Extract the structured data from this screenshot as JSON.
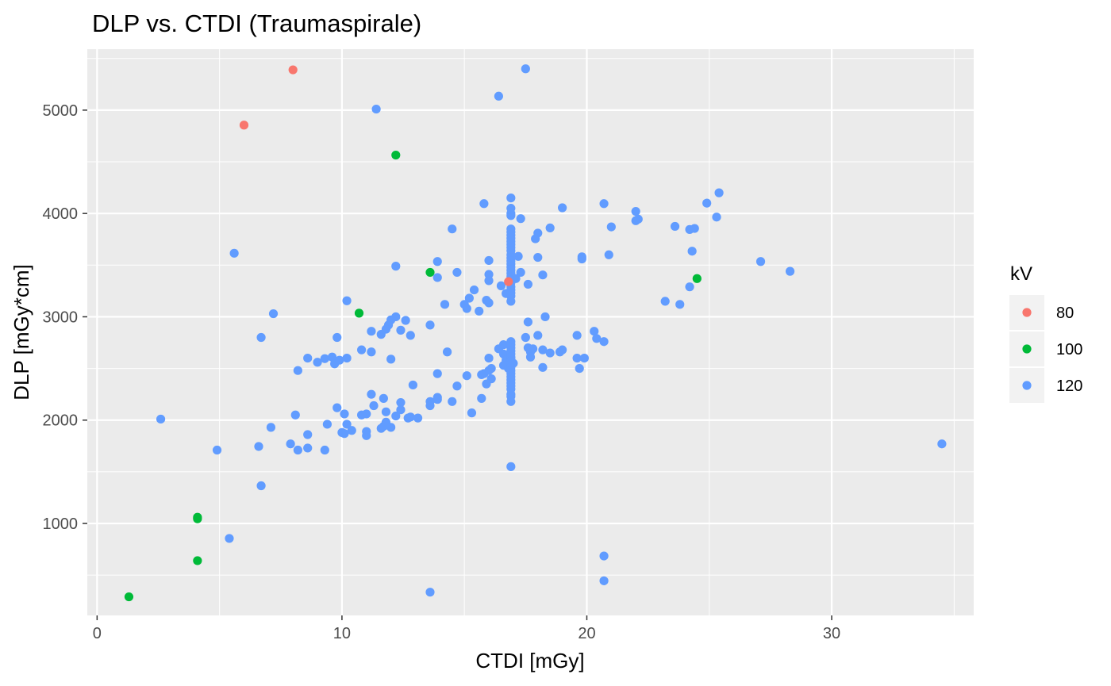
{
  "chart_data": {
    "type": "scatter",
    "title": "DLP vs. CTDI (Traumaspirale)",
    "xlabel": "CTDI [mGy]",
    "ylabel": "DLP [mGy*cm]",
    "xlim": [
      -0.4,
      35.8
    ],
    "ylim": [
      110,
      5590
    ],
    "x_ticks": [
      0,
      10,
      20,
      30
    ],
    "y_ticks": [
      1000,
      2000,
      3000,
      4000,
      5000
    ],
    "grid": true,
    "legend": {
      "title": "kV",
      "position": "right",
      "entries": [
        {
          "label": "80",
          "color": "#F8766D"
        },
        {
          "label": "100",
          "color": "#00BA38"
        },
        {
          "label": "120",
          "color": "#619CFF"
        }
      ]
    },
    "series": [
      {
        "name": "80",
        "color": "#F8766D",
        "points": [
          [
            8.0,
            5390
          ],
          [
            6.0,
            4855
          ],
          [
            16.8,
            3340
          ]
        ]
      },
      {
        "name": "100",
        "color": "#00BA38",
        "points": [
          [
            12.2,
            4565
          ],
          [
            13.6,
            3430
          ],
          [
            10.7,
            3035
          ],
          [
            24.5,
            3370
          ],
          [
            4.1,
            1060
          ],
          [
            4.1,
            1045
          ],
          [
            4.1,
            640
          ],
          [
            1.3,
            290
          ]
        ]
      },
      {
        "name": "120",
        "color": "#619CFF",
        "points": [
          [
            17.5,
            5400
          ],
          [
            16.4,
            5135
          ],
          [
            11.4,
            5010
          ],
          [
            5.6,
            3615
          ],
          [
            7.2,
            3030
          ],
          [
            6.7,
            2800
          ],
          [
            2.6,
            2010
          ],
          [
            4.9,
            1710
          ],
          [
            6.6,
            1745
          ],
          [
            6.7,
            1365
          ],
          [
            5.4,
            855
          ],
          [
            13.6,
            335
          ],
          [
            16.9,
            1550
          ],
          [
            20.7,
            685
          ],
          [
            20.7,
            445
          ],
          [
            34.5,
            1770
          ],
          [
            25.4,
            4200
          ],
          [
            24.9,
            4100
          ],
          [
            25.3,
            3965
          ],
          [
            22.0,
            4020
          ],
          [
            22.0,
            3930
          ],
          [
            22.1,
            3945
          ],
          [
            23.6,
            3875
          ],
          [
            24.2,
            3845
          ],
          [
            24.4,
            3855
          ],
          [
            24.3,
            3635
          ],
          [
            24.2,
            3290
          ],
          [
            23.2,
            3150
          ],
          [
            23.8,
            3120
          ],
          [
            27.1,
            3535
          ],
          [
            28.3,
            3440
          ],
          [
            20.7,
            4095
          ],
          [
            21.0,
            3870
          ],
          [
            20.9,
            3600
          ],
          [
            19.8,
            3580
          ],
          [
            19.8,
            3560
          ],
          [
            19.0,
            4055
          ],
          [
            18.5,
            3860
          ],
          [
            18.0,
            3810
          ],
          [
            17.9,
            3755
          ],
          [
            18.0,
            3575
          ],
          [
            18.2,
            3405
          ],
          [
            17.3,
            3950
          ],
          [
            17.2,
            3585
          ],
          [
            17.3,
            3430
          ],
          [
            17.1,
            3370
          ],
          [
            17.6,
            3315
          ],
          [
            15.8,
            4095
          ],
          [
            16.0,
            3545
          ],
          [
            16.0,
            3410
          ],
          [
            16.0,
            3350
          ],
          [
            16.5,
            3300
          ],
          [
            16.7,
            3225
          ],
          [
            15.9,
            3160
          ],
          [
            16.0,
            3135
          ],
          [
            15.4,
            3260
          ],
          [
            15.2,
            3180
          ],
          [
            15.0,
            3120
          ],
          [
            15.1,
            3080
          ],
          [
            15.6,
            3055
          ],
          [
            14.5,
            3850
          ],
          [
            13.9,
            3535
          ],
          [
            13.9,
            3380
          ],
          [
            14.7,
            3430
          ],
          [
            14.2,
            3120
          ],
          [
            13.6,
            2920
          ],
          [
            12.2,
            3490
          ],
          [
            10.2,
            3155
          ],
          [
            12.2,
            3000
          ],
          [
            12.0,
            2970
          ],
          [
            12.6,
            2965
          ],
          [
            11.9,
            2920
          ],
          [
            11.8,
            2880
          ],
          [
            11.6,
            2830
          ],
          [
            11.2,
            2860
          ],
          [
            12.4,
            2870
          ],
          [
            12.8,
            2820
          ],
          [
            9.8,
            2800
          ],
          [
            8.2,
            2480
          ],
          [
            8.6,
            2600
          ],
          [
            9.0,
            2560
          ],
          [
            9.3,
            2595
          ],
          [
            9.6,
            2610
          ],
          [
            9.7,
            2545
          ],
          [
            9.9,
            2580
          ],
          [
            10.2,
            2600
          ],
          [
            10.8,
            2680
          ],
          [
            11.2,
            2660
          ],
          [
            12.0,
            2590
          ],
          [
            11.2,
            2250
          ],
          [
            11.7,
            2210
          ],
          [
            11.3,
            2140
          ],
          [
            11.8,
            2080
          ],
          [
            12.2,
            2040
          ],
          [
            12.4,
            2170
          ],
          [
            12.4,
            2100
          ],
          [
            12.9,
            2340
          ],
          [
            12.7,
            2020
          ],
          [
            12.8,
            2030
          ],
          [
            13.1,
            2020
          ],
          [
            11.7,
            1940
          ],
          [
            11.8,
            1980
          ],
          [
            11.6,
            1920
          ],
          [
            12.0,
            1930
          ],
          [
            11.0,
            1890
          ],
          [
            11.0,
            1850
          ],
          [
            11.0,
            2060
          ],
          [
            10.8,
            2050
          ],
          [
            10.4,
            1900
          ],
          [
            10.2,
            1960
          ],
          [
            10.1,
            2060
          ],
          [
            10.0,
            1880
          ],
          [
            10.1,
            1870
          ],
          [
            9.8,
            2120
          ],
          [
            9.4,
            1960
          ],
          [
            9.3,
            1710
          ],
          [
            8.6,
            1860
          ],
          [
            8.6,
            1730
          ],
          [
            8.2,
            1710
          ],
          [
            7.9,
            1770
          ],
          [
            8.1,
            2050
          ],
          [
            7.1,
            1930
          ],
          [
            13.9,
            2450
          ],
          [
            14.3,
            2660
          ],
          [
            13.9,
            2220
          ],
          [
            13.9,
            2200
          ],
          [
            13.6,
            2180
          ],
          [
            13.6,
            2140
          ],
          [
            14.5,
            2180
          ],
          [
            14.7,
            2330
          ],
          [
            15.3,
            2070
          ],
          [
            15.1,
            2430
          ],
          [
            16.0,
            2600
          ],
          [
            16.1,
            2500
          ],
          [
            15.8,
            2450
          ],
          [
            16.0,
            2480
          ],
          [
            16.1,
            2400
          ],
          [
            15.9,
            2350
          ],
          [
            15.7,
            2440
          ],
          [
            15.7,
            2210
          ],
          [
            16.4,
            2690
          ],
          [
            16.6,
            2730
          ],
          [
            16.6,
            2640
          ],
          [
            16.7,
            2580
          ],
          [
            16.6,
            2530
          ],
          [
            16.8,
            2500
          ],
          [
            17.0,
            2550
          ],
          [
            16.9,
            2600
          ],
          [
            16.9,
            4150
          ],
          [
            16.9,
            4050
          ],
          [
            16.9,
            4000
          ],
          [
            16.9,
            3980
          ],
          [
            16.9,
            3850
          ],
          [
            16.9,
            3820
          ],
          [
            16.9,
            3790
          ],
          [
            16.9,
            3760
          ],
          [
            16.9,
            3730
          ],
          [
            16.9,
            3700
          ],
          [
            16.9,
            3670
          ],
          [
            16.9,
            3640
          ],
          [
            16.9,
            3600
          ],
          [
            16.9,
            3570
          ],
          [
            16.9,
            3540
          ],
          [
            16.9,
            3510
          ],
          [
            16.9,
            3480
          ],
          [
            16.9,
            3450
          ],
          [
            16.9,
            3420
          ],
          [
            16.9,
            3390
          ],
          [
            16.9,
            3360
          ],
          [
            16.9,
            3330
          ],
          [
            16.9,
            3290
          ],
          [
            16.9,
            3260
          ],
          [
            16.9,
            3230
          ],
          [
            16.9,
            3200
          ],
          [
            16.9,
            3150
          ],
          [
            16.9,
            2760
          ],
          [
            16.9,
            2730
          ],
          [
            16.9,
            2700
          ],
          [
            16.9,
            2670
          ],
          [
            16.9,
            2640
          ],
          [
            16.9,
            2610
          ],
          [
            16.9,
            2570
          ],
          [
            16.9,
            2540
          ],
          [
            16.9,
            2510
          ],
          [
            16.9,
            2480
          ],
          [
            16.9,
            2450
          ],
          [
            16.9,
            2420
          ],
          [
            16.9,
            2390
          ],
          [
            16.9,
            2360
          ],
          [
            16.9,
            2330
          ],
          [
            16.9,
            2300
          ],
          [
            16.9,
            2250
          ],
          [
            16.9,
            2230
          ],
          [
            16.9,
            2180
          ],
          [
            17.6,
            2950
          ],
          [
            17.5,
            2800
          ],
          [
            18.3,
            3000
          ],
          [
            17.6,
            2700
          ],
          [
            17.8,
            2690
          ],
          [
            17.7,
            2660
          ],
          [
            17.7,
            2610
          ],
          [
            18.0,
            2820
          ],
          [
            18.2,
            2680
          ],
          [
            18.2,
            2510
          ],
          [
            18.5,
            2650
          ],
          [
            18.9,
            2660
          ],
          [
            19.0,
            2680
          ],
          [
            19.6,
            2820
          ],
          [
            19.6,
            2600
          ],
          [
            19.7,
            2500
          ],
          [
            19.9,
            2600
          ],
          [
            20.3,
            2860
          ],
          [
            20.4,
            2790
          ],
          [
            20.7,
            2760
          ]
        ]
      }
    ]
  }
}
